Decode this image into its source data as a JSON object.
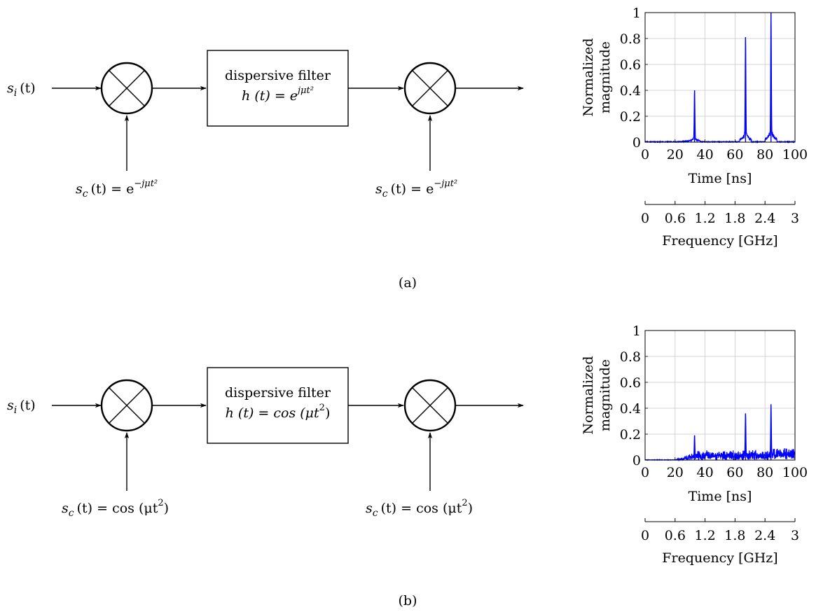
{
  "panels": [
    {
      "caption": "(a)",
      "input": {
        "sym": "s",
        "sub": "i",
        "arg": "(t)"
      },
      "carrier1": {
        "sym": "s",
        "sub": "c",
        "arg": "(t) = e",
        "sup": "−jμt²"
      },
      "filter": {
        "line1": "dispersive filter",
        "line2a": "h (t) = e",
        "line2_sup": "jμt²"
      },
      "carrier2": {
        "sym": "s",
        "sub": "c",
        "arg": "(t) = e",
        "sup": "−jμt²"
      },
      "chart_data": {
        "type": "line",
        "ylabel": "Normalized magnitude",
        "ylabel_lines": [
          "Normalized",
          "magnitude"
        ],
        "xlabel": "Time [ns]",
        "xlim": [
          0,
          100
        ],
        "ylim": [
          0,
          1
        ],
        "xticks": [
          "0",
          "20",
          "40",
          "60",
          "80",
          "100"
        ],
        "yticks": [
          "0",
          "0.2",
          "0.4",
          "0.6",
          "0.8",
          "1"
        ],
        "secondary_axis": {
          "label": "Frequency [GHz]",
          "range": [
            0,
            3
          ],
          "ticks": [
            "0",
            "0.6",
            "1.2",
            "1.8",
            "2.4",
            "3"
          ]
        },
        "grid": true,
        "line_color": "#0000ff",
        "noise_level": 0.005,
        "peaks": [
          {
            "x": 33,
            "y": 0.4
          },
          {
            "x": 67,
            "y": 0.81
          },
          {
            "x": 84,
            "y": 1.0
          }
        ]
      }
    },
    {
      "caption": "(b)",
      "input": {
        "sym": "s",
        "sub": "i",
        "arg": "(t)"
      },
      "carrier1": {
        "sym": "s",
        "sub": "c",
        "arg": "(t) = cos (μt",
        "sup": "2",
        "tail": ")"
      },
      "filter": {
        "line1": "dispersive filter",
        "line2a": "h (t) = cos (μt",
        "line2_sup": "2",
        "line2_tail": ")"
      },
      "carrier2": {
        "sym": "s",
        "sub": "c",
        "arg": "(t) = cos (μt",
        "sup": "2",
        "tail": ")"
      },
      "chart_data": {
        "type": "line",
        "ylabel": "Normalized magnitude",
        "ylabel_lines": [
          "Normalized",
          "magnitude"
        ],
        "xlabel": "Time [ns]",
        "xlim": [
          0,
          100
        ],
        "ylim": [
          0,
          1
        ],
        "xticks": [
          "0",
          "20",
          "40",
          "60",
          "80",
          "100"
        ],
        "yticks": [
          "0",
          "0.2",
          "0.4",
          "0.6",
          "0.8",
          "1"
        ],
        "secondary_axis": {
          "label": "Frequency [GHz]",
          "range": [
            0,
            3
          ],
          "ticks": [
            "0",
            "0.6",
            "1.2",
            "1.8",
            "2.4",
            "3"
          ]
        },
        "grid": true,
        "line_color": "#0000ff",
        "noise_level": 0.06,
        "peaks": [
          {
            "x": 33,
            "y": 0.19
          },
          {
            "x": 67,
            "y": 0.36
          },
          {
            "x": 84,
            "y": 0.43
          }
        ]
      }
    }
  ]
}
